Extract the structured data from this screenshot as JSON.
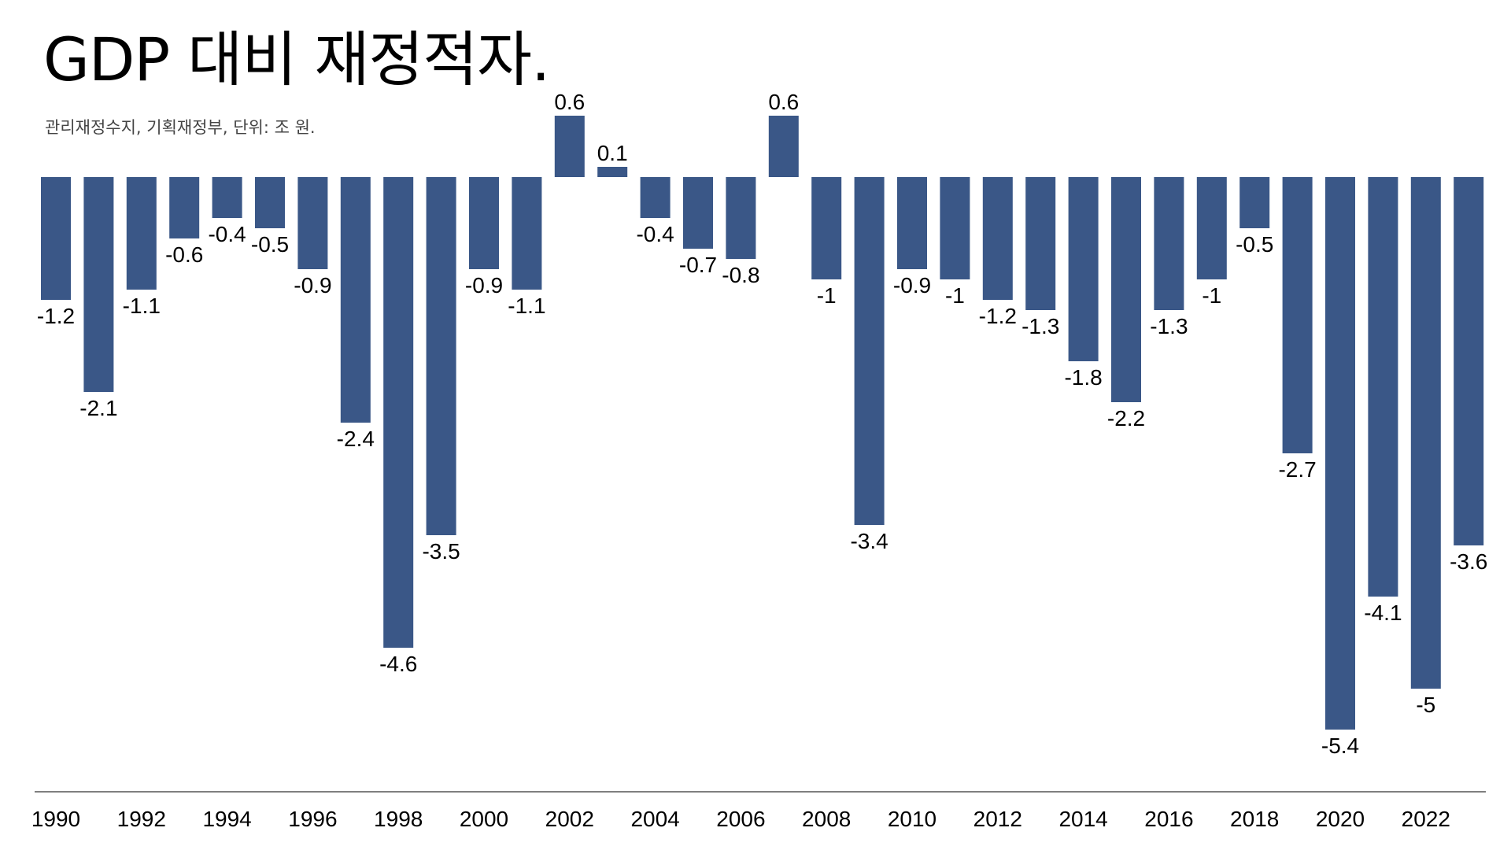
{
  "chart_data": {
    "type": "bar",
    "title": "GDP 대비 재정적자.",
    "subtitle": "관리재정수지, 기획재정부, 단위: 조 원.",
    "xlabel": "",
    "ylabel": "",
    "categories": [
      "1990",
      "1991",
      "1992",
      "1993",
      "1994",
      "1995",
      "1996",
      "1997",
      "1998",
      "1999",
      "2000",
      "2001",
      "2002",
      "2003",
      "2004",
      "2005",
      "2006",
      "2007",
      "2008",
      "2009",
      "2010",
      "2011",
      "2012",
      "2013",
      "2014",
      "2015",
      "2016",
      "2017",
      "2018",
      "2019",
      "2020",
      "2021",
      "2022",
      "2023"
    ],
    "values": [
      -1.2,
      -2.1,
      -1.1,
      -0.6,
      -0.4,
      -0.5,
      -0.9,
      -2.4,
      -4.6,
      -3.5,
      -0.9,
      -1.1,
      0.6,
      0.1,
      -0.4,
      -0.7,
      -0.8,
      0.6,
      -1,
      -3.4,
      -0.9,
      -1,
      -1.2,
      -1.3,
      -1.8,
      -2.2,
      -1.3,
      -1,
      -0.5,
      -2.7,
      -5.4,
      -4.1,
      -5,
      -3.6
    ],
    "value_labels": [
      "-1.2",
      "-2.1",
      "-1.1",
      "-0.6",
      "-0.4",
      "-0.5",
      "-0.9",
      "-2.4",
      "-4.6",
      "-3.5",
      "-0.9",
      "-1.1",
      "0.6",
      "0.1",
      "-0.4",
      "-0.7",
      "-0.8",
      "0.6",
      "-1",
      "-3.4",
      "-0.9",
      "-1",
      "-1.2",
      "-1.3",
      "-1.8",
      "-2.2",
      "-1.3",
      "-1",
      "-0.5",
      "-2.7",
      "-5.4",
      "-4.1",
      "-5",
      "-3.6"
    ],
    "x_tick_labels": [
      "1990",
      "1992",
      "1994",
      "1996",
      "1998",
      "2000",
      "2002",
      "2004",
      "2006",
      "2008",
      "2010",
      "2012",
      "2014",
      "2016",
      "2018",
      "2020",
      "2022"
    ],
    "ylim": [
      -5.4,
      0.6
    ],
    "grid": false,
    "legend": "none",
    "bar_color": "#3a5787",
    "axis_color": "#555555"
  }
}
